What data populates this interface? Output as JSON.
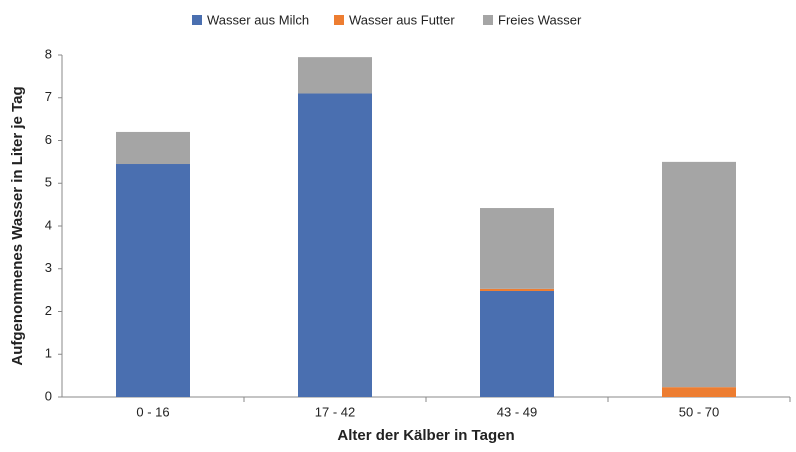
{
  "chart_data": {
    "type": "stacked_bar",
    "categories": [
      "0 - 16",
      "17 - 42",
      "43 - 49",
      "50 - 70"
    ],
    "series": [
      {
        "name": "Wasser aus Milch",
        "color": "#4a6fb0",
        "values": [
          5.45,
          7.1,
          2.48,
          0
        ]
      },
      {
        "name": "Wasser aus Futter",
        "color": "#ed7d31",
        "values": [
          0,
          0,
          0.05,
          0.23
        ]
      },
      {
        "name": "Freies Wasser",
        "color": "#a5a5a5",
        "values": [
          0.75,
          0.85,
          1.89,
          5.27
        ]
      }
    ],
    "x_label": "Alter der Kälber in Tagen",
    "y_label": "Aufgenommenes Wasser in Liter je Tag",
    "ylim": [
      0,
      8
    ],
    "yticks": [
      0,
      1,
      2,
      3,
      4,
      5,
      6,
      7,
      8
    ],
    "grid": false,
    "legend": "top"
  }
}
